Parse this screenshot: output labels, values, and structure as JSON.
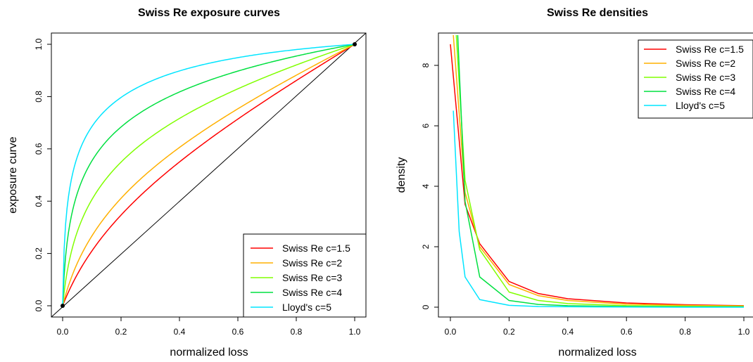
{
  "chart_data": [
    {
      "type": "line",
      "title": "Swiss Re exposure curves",
      "xlabel": "normalized loss",
      "ylabel": "exposure curve",
      "xlim": [
        0,
        1
      ],
      "ylim": [
        0,
        1
      ],
      "x_ticks": [
        "0.0",
        "0.2",
        "0.4",
        "0.6",
        "0.8",
        "1.0"
      ],
      "y_ticks": [
        "0.0",
        "0.2",
        "0.4",
        "0.6",
        "0.8",
        "1.0"
      ],
      "legend_position": "bottom-right",
      "diagonal": true,
      "endpoints": [
        [
          0,
          0
        ],
        [
          1,
          1
        ]
      ],
      "series": [
        {
          "name": "Swiss Re c=1.5",
          "c": 1.5,
          "color": "#ff0000",
          "x": [
            0,
            0.1,
            0.2,
            0.3,
            0.4,
            0.5,
            0.6,
            0.7,
            0.8,
            0.9,
            1.0
          ],
          "values": [
            0,
            0.19,
            0.34,
            0.46,
            0.57,
            0.66,
            0.74,
            0.82,
            0.88,
            0.94,
            1.0
          ]
        },
        {
          "name": "Swiss Re c=2",
          "c": 2,
          "color": "#ffb000",
          "x": [
            0,
            0.1,
            0.2,
            0.3,
            0.4,
            0.5,
            0.6,
            0.7,
            0.8,
            0.9,
            1.0
          ],
          "values": [
            0,
            0.25,
            0.41,
            0.53,
            0.63,
            0.71,
            0.78,
            0.84,
            0.9,
            0.95,
            1.0
          ]
        },
        {
          "name": "Swiss Re c=3",
          "c": 3,
          "color": "#80ff00",
          "x": [
            0,
            0.1,
            0.2,
            0.3,
            0.4,
            0.5,
            0.6,
            0.7,
            0.8,
            0.9,
            1.0
          ],
          "values": [
            0,
            0.37,
            0.54,
            0.65,
            0.73,
            0.8,
            0.85,
            0.89,
            0.93,
            0.97,
            1.0
          ]
        },
        {
          "name": "Swiss Re c=4",
          "c": 4,
          "color": "#00e040",
          "x": [
            0,
            0.1,
            0.2,
            0.3,
            0.4,
            0.5,
            0.6,
            0.7,
            0.8,
            0.9,
            1.0
          ],
          "values": [
            0,
            0.52,
            0.66,
            0.74,
            0.8,
            0.85,
            0.89,
            0.92,
            0.95,
            0.98,
            1.0
          ]
        },
        {
          "name": "Lloyd's c=5",
          "c": 5,
          "color": "#00e5ff",
          "x": [
            0,
            0.1,
            0.2,
            0.3,
            0.4,
            0.5,
            0.6,
            0.7,
            0.8,
            0.9,
            1.0
          ],
          "values": [
            0,
            0.7,
            0.8,
            0.85,
            0.89,
            0.92,
            0.94,
            0.96,
            0.97,
            0.99,
            1.0
          ]
        }
      ]
    },
    {
      "type": "line",
      "title": "Swiss Re densities",
      "xlabel": "normalized loss",
      "ylabel": "density",
      "xlim": [
        0,
        1
      ],
      "ylim": [
        0,
        9
      ],
      "x_ticks": [
        "0.0",
        "0.2",
        "0.4",
        "0.6",
        "0.8",
        "1.0"
      ],
      "y_ticks": [
        "0",
        "2",
        "4",
        "6",
        "8"
      ],
      "legend_position": "top-right",
      "series": [
        {
          "name": "Swiss Re c=1.5",
          "color": "#ff0000",
          "x": [
            0,
            0.05,
            0.1,
            0.2,
            0.3,
            0.4,
            0.6,
            0.8,
            1.0
          ],
          "values": [
            8.7,
            3.4,
            2.1,
            0.85,
            0.45,
            0.28,
            0.14,
            0.08,
            0.05
          ]
        },
        {
          "name": "Swiss Re c=2",
          "color": "#ffb000",
          "x": [
            0.01,
            0.05,
            0.1,
            0.2,
            0.3,
            0.4,
            0.6,
            0.8,
            1.0
          ],
          "values": [
            9.0,
            3.8,
            2.0,
            0.75,
            0.38,
            0.22,
            0.1,
            0.06,
            0.04
          ]
        },
        {
          "name": "Swiss Re c=3",
          "color": "#80ff00",
          "x": [
            0.02,
            0.05,
            0.1,
            0.2,
            0.3,
            0.4,
            0.6,
            0.8,
            1.0
          ],
          "values": [
            9.0,
            4.2,
            1.9,
            0.5,
            0.22,
            0.12,
            0.05,
            0.03,
            0.02
          ]
        },
        {
          "name": "Swiss Re c=4",
          "color": "#00e040",
          "x": [
            0.025,
            0.05,
            0.1,
            0.2,
            0.3,
            0.4,
            0.6,
            0.8,
            1.0
          ],
          "values": [
            9.0,
            3.5,
            1.0,
            0.22,
            0.09,
            0.05,
            0.02,
            0.01,
            0.01
          ]
        },
        {
          "name": "Lloyd's c=5",
          "color": "#00e5ff",
          "x": [
            0.01,
            0.03,
            0.05,
            0.1,
            0.2,
            0.3,
            0.5,
            0.8,
            1.0
          ],
          "values": [
            6.5,
            2.5,
            1.0,
            0.25,
            0.06,
            0.02,
            0.01,
            0.0,
            0.0
          ]
        }
      ]
    }
  ]
}
